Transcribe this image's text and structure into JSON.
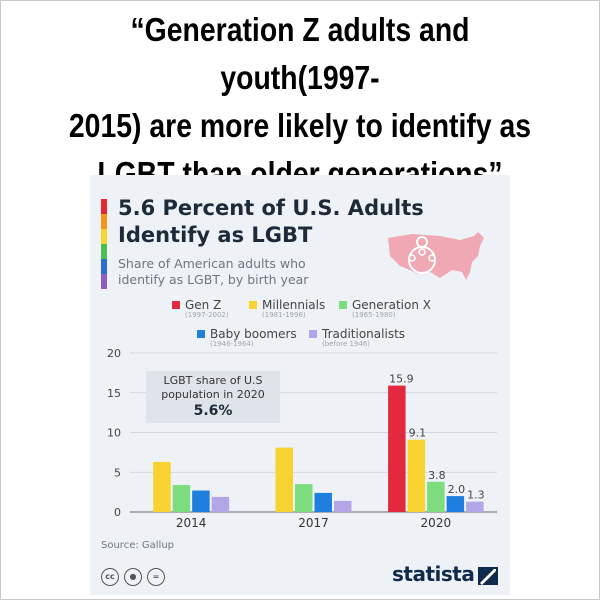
{
  "headline": {
    "line1": "“Generation Z adults and youth(1997-",
    "line2": "2015) are more likely to identify as",
    "line3": "LGBT than older generations”"
  },
  "card": {
    "title_line1": "5.6 Percent of U.S. Adults",
    "title_line2": "Identify as LGBT",
    "subtitle": "Share of American adults who identify as LGBT, by birth year",
    "rainbow_colors": [
      "#e3292f",
      "#f7941d",
      "#f8d531",
      "#4dbf4f",
      "#2c6fd1",
      "#8e5fbf"
    ],
    "icon": "us-map-people-icon",
    "source": "Source: Gallup",
    "license_icons": [
      "cc-icon",
      "by-icon",
      "nd-icon"
    ],
    "brand": "statista"
  },
  "legend": [
    {
      "name": "Gen Z",
      "range": "(1997-2002)",
      "color": "#e3293f"
    },
    {
      "name": "Millennials",
      "range": "(1981-1996)",
      "color": "#f8d230"
    },
    {
      "name": "Generation X",
      "range": "(1965-1980)",
      "color": "#7ddc7d"
    },
    {
      "name": "Baby boomers",
      "range": "(1946-1964)",
      "color": "#1f7fde"
    },
    {
      "name": "Traditionalists",
      "range": "(before 1946)",
      "color": "#b3a6e6"
    }
  ],
  "callout": {
    "line1": "LGBT share of U.S",
    "line2": "population in 2020",
    "value": "5.6%"
  },
  "chart_data": {
    "type": "bar",
    "categories": [
      "2014",
      "2017",
      "2020"
    ],
    "ylim": [
      0,
      20
    ],
    "yticks": [
      0,
      5,
      10,
      15,
      20
    ],
    "grid": true,
    "series": [
      {
        "name": "Gen Z",
        "values": [
          null,
          null,
          15.9
        ],
        "labels": [
          null,
          null,
          "15.9"
        ]
      },
      {
        "name": "Millennials",
        "values": [
          6.3,
          8.1,
          9.1
        ],
        "labels": [
          null,
          null,
          "9.1"
        ]
      },
      {
        "name": "Generation X",
        "values": [
          3.4,
          3.5,
          3.8
        ],
        "labels": [
          null,
          null,
          "3.8"
        ]
      },
      {
        "name": "Baby boomers",
        "values": [
          2.7,
          2.4,
          2.0
        ],
        "labels": [
          null,
          null,
          "2.0"
        ]
      },
      {
        "name": "Traditionalists",
        "values": [
          1.9,
          1.4,
          1.3
        ],
        "labels": [
          null,
          null,
          "1.3"
        ]
      }
    ]
  }
}
